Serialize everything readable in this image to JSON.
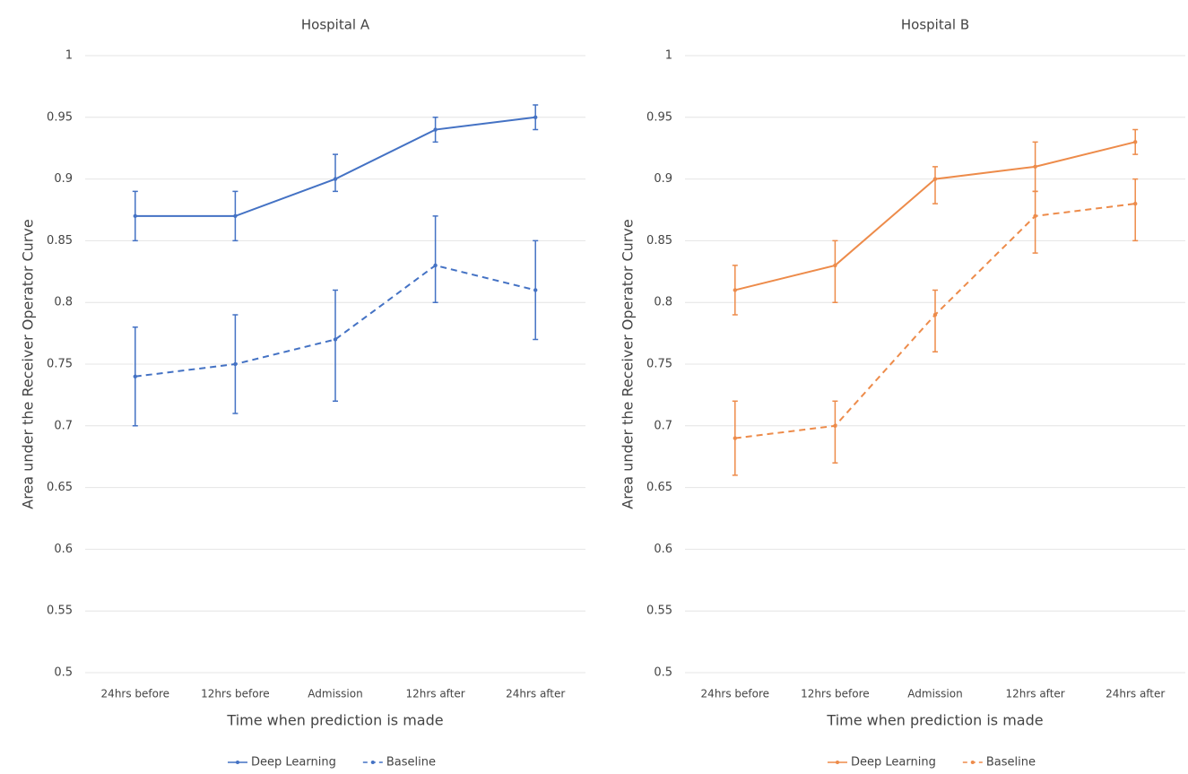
{
  "chart_data": [
    {
      "type": "line",
      "title": "Hospital A",
      "x_label": "Time when prediction is made",
      "y_label": "Area under the Receiver Operator Curve",
      "categories": [
        "24hrs before",
        "12hrs before",
        "Admission",
        "12hrs after",
        "24hrs after"
      ],
      "series": [
        {
          "name": "Deep Learning",
          "color": "#4472c4",
          "dashed": false,
          "values": [
            0.87,
            0.87,
            0.9,
            0.94,
            0.95
          ],
          "lower": [
            0.85,
            0.85,
            0.89,
            0.93,
            0.94
          ],
          "upper": [
            0.89,
            0.89,
            0.92,
            0.95,
            0.96
          ]
        },
        {
          "name": "Baseline",
          "color": "#4472c4",
          "dashed": true,
          "values": [
            0.74,
            0.75,
            0.77,
            0.83,
            0.81
          ],
          "lower": [
            0.7,
            0.71,
            0.72,
            0.8,
            0.77
          ],
          "upper": [
            0.78,
            0.79,
            0.81,
            0.87,
            0.85
          ]
        }
      ],
      "ylim": [
        0.5,
        1
      ],
      "yticks": [
        0.5,
        0.55,
        0.6,
        0.65,
        0.7,
        0.75,
        0.8,
        0.85,
        0.9,
        0.95,
        1
      ],
      "grid": true,
      "legend": "bottom"
    },
    {
      "type": "line",
      "title": "Hospital B",
      "x_label": "Time when prediction is made",
      "y_label": "Area under the Receiver Operator Curve",
      "categories": [
        "24hrs before",
        "12hrs before",
        "Admission",
        "12hrs after",
        "24hrs after"
      ],
      "series": [
        {
          "name": "Deep Learning",
          "color": "#ed8b4a",
          "dashed": false,
          "values": [
            0.81,
            0.83,
            0.9,
            0.91,
            0.93
          ],
          "lower": [
            0.79,
            0.8,
            0.88,
            0.89,
            0.92
          ],
          "upper": [
            0.83,
            0.85,
            0.91,
            0.93,
            0.94
          ]
        },
        {
          "name": "Baseline",
          "color": "#ed8b4a",
          "dashed": true,
          "values": [
            0.69,
            0.7,
            0.79,
            0.87,
            0.88
          ],
          "lower": [
            0.66,
            0.67,
            0.76,
            0.84,
            0.85
          ],
          "upper": [
            0.72,
            0.72,
            0.81,
            0.89,
            0.9
          ]
        }
      ],
      "ylim": [
        0.5,
        1
      ],
      "yticks": [
        0.5,
        0.55,
        0.6,
        0.65,
        0.7,
        0.75,
        0.8,
        0.85,
        0.9,
        0.95,
        1
      ],
      "grid": true,
      "legend": "bottom"
    }
  ]
}
